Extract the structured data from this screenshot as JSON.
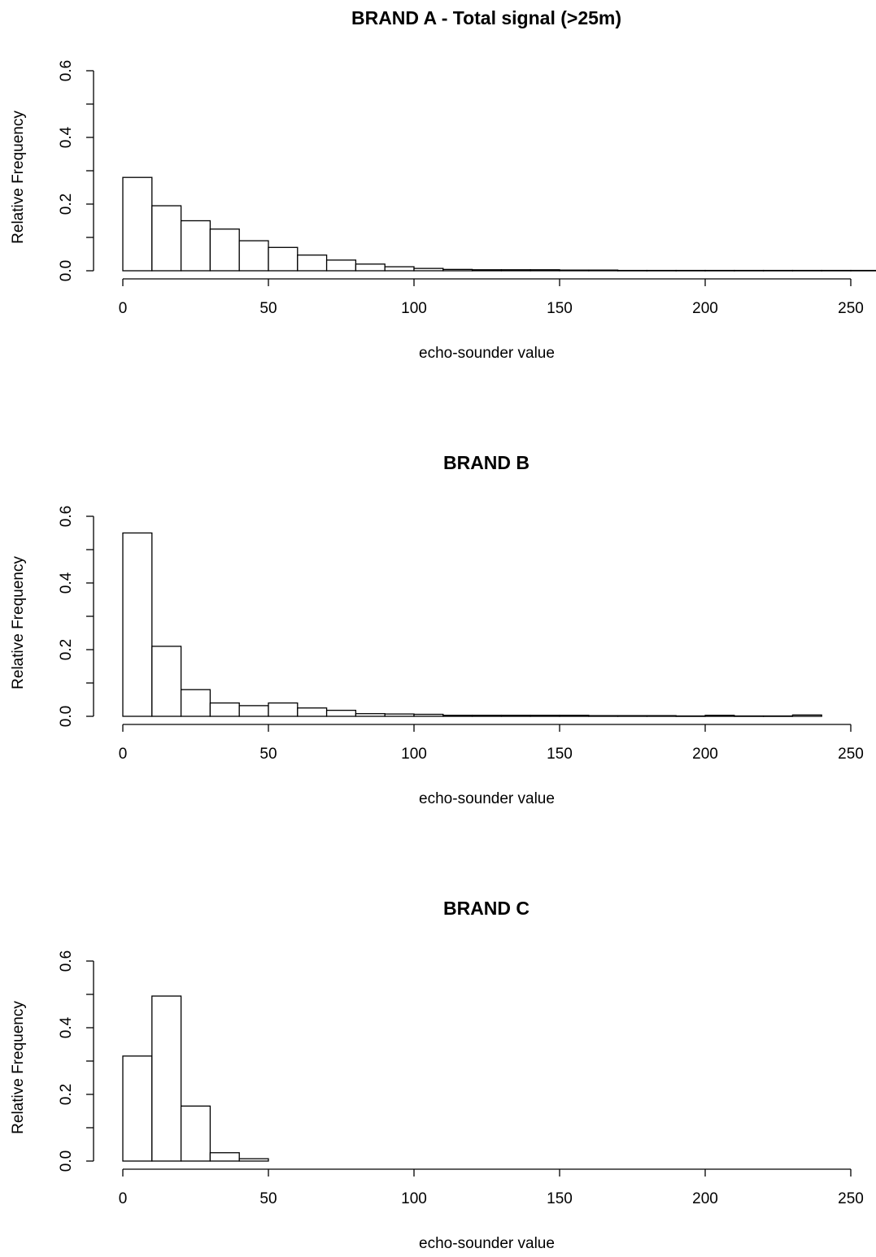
{
  "chart_data": [
    {
      "type": "bar",
      "title": "BRAND A - Total signal (>25m)",
      "xlabel": "echo-sounder value",
      "ylabel": "Relative Frequency",
      "xlim": [
        0,
        250
      ],
      "ylim": [
        0,
        0.6
      ],
      "xticks": [
        0,
        50,
        100,
        150,
        200,
        250
      ],
      "yticks": [
        0.0,
        0.2,
        0.4,
        0.6
      ],
      "xtick_labels": [
        "0",
        "50",
        "100",
        "150",
        "200",
        "250"
      ],
      "ytick_labels": [
        "0.0",
        "0.2",
        "0.4",
        "0.6"
      ],
      "bin_width": 10,
      "bins": [
        0,
        10,
        20,
        30,
        40,
        50,
        60,
        70,
        80,
        90,
        100,
        110,
        120,
        130,
        140,
        150,
        160,
        170,
        180,
        190,
        200,
        210,
        220,
        230,
        240,
        250
      ],
      "values": [
        0.28,
        0.195,
        0.15,
        0.125,
        0.09,
        0.07,
        0.047,
        0.032,
        0.02,
        0.012,
        0.007,
        0.004,
        0.003,
        0.003,
        0.003,
        0.002,
        0.002,
        0.001,
        0.001,
        0.001,
        0.001,
        0.001,
        0.001,
        0.001,
        0.001,
        0.001
      ]
    },
    {
      "type": "bar",
      "title": "BRAND B",
      "xlabel": "echo-sounder value",
      "ylabel": "Relative Frequency",
      "xlim": [
        0,
        250
      ],
      "ylim": [
        0,
        0.6
      ],
      "xticks": [
        0,
        50,
        100,
        150,
        200,
        250
      ],
      "yticks": [
        0.0,
        0.2,
        0.4,
        0.6
      ],
      "xtick_labels": [
        "0",
        "50",
        "100",
        "150",
        "200",
        "250"
      ],
      "ytick_labels": [
        "0.0",
        "0.2",
        "0.4",
        "0.6"
      ],
      "bin_width": 10,
      "bins": [
        0,
        10,
        20,
        30,
        40,
        50,
        60,
        70,
        80,
        90,
        100,
        110,
        120,
        130,
        140,
        150,
        160,
        170,
        180,
        190,
        200,
        210,
        220,
        230
      ],
      "values": [
        0.55,
        0.21,
        0.08,
        0.04,
        0.032,
        0.04,
        0.025,
        0.018,
        0.008,
        0.007,
        0.006,
        0.003,
        0.003,
        0.003,
        0.003,
        0.003,
        0.002,
        0.002,
        0.002,
        0.001,
        0.003,
        0.001,
        0.001,
        0.004
      ]
    },
    {
      "type": "bar",
      "title": "BRAND C",
      "xlabel": "echo-sounder value",
      "ylabel": "Relative Frequency",
      "xlim": [
        0,
        250
      ],
      "ylim": [
        0,
        0.6
      ],
      "xticks": [
        0,
        50,
        100,
        150,
        200,
        250
      ],
      "yticks": [
        0.0,
        0.2,
        0.4,
        0.6
      ],
      "xtick_labels": [
        "0",
        "50",
        "100",
        "150",
        "200",
        "250"
      ],
      "ytick_labels": [
        "0.0",
        "0.2",
        "0.4",
        "0.6"
      ],
      "bin_width": 10,
      "bins": [
        0,
        10,
        20,
        30,
        40
      ],
      "values": [
        0.315,
        0.495,
        0.165,
        0.025,
        0.007
      ]
    }
  ]
}
